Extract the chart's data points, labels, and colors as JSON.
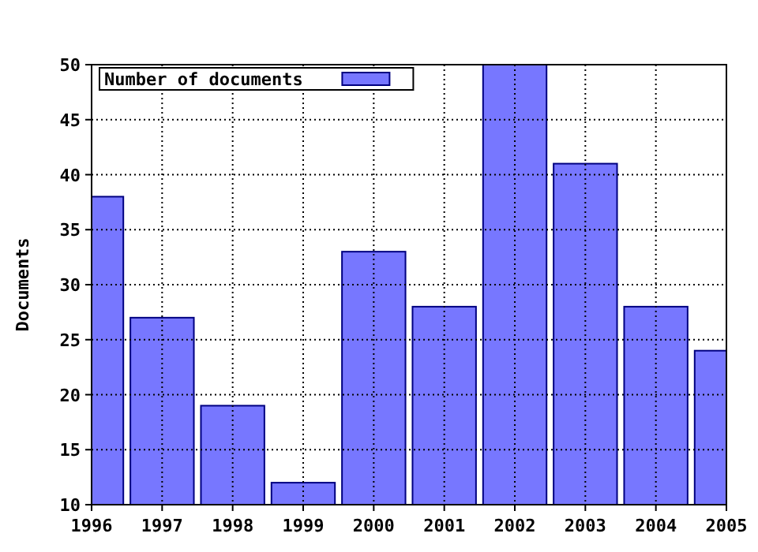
{
  "chart_data": {
    "type": "bar",
    "ylabel": "Documents",
    "x": [
      1996,
      1997,
      1998,
      1999,
      2000,
      2001,
      2002,
      2003,
      2004,
      2005
    ],
    "series": [
      {
        "name": "Number of documents",
        "color": "#7777ff",
        "values": [
          38,
          27,
          19,
          12,
          33,
          28,
          50,
          41,
          28,
          24
        ]
      }
    ],
    "xlim": [
      1996,
      2005
    ],
    "xticks": [
      1996,
      1997,
      1998,
      1999,
      2000,
      2001,
      2002,
      2003,
      2004,
      2005
    ],
    "ylim": [
      10,
      50
    ],
    "yticks": [
      10,
      15,
      20,
      25,
      30,
      35,
      40,
      45,
      50
    ],
    "grid": true,
    "legend": "top left"
  }
}
